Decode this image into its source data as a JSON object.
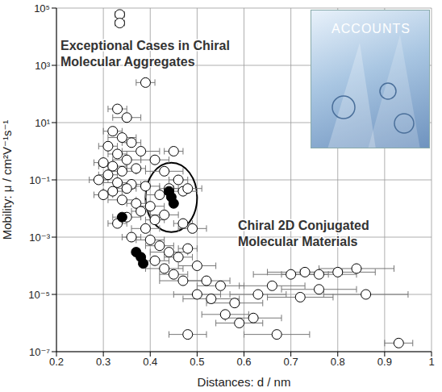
{
  "chart_data": {
    "type": "scatter",
    "xlabel": "Distances: d / nm",
    "ylabel": "Mobility: μ / cm²V⁻¹s⁻¹",
    "log": "y",
    "grid": true,
    "xlim": [
      0.2,
      1
    ],
    "xticks": [
      0.2,
      0.3,
      0.4,
      0.5,
      0.6,
      0.7,
      0.8,
      0.9,
      1
    ],
    "ylim": [
      1e-07,
      100000
    ],
    "yticks": [
      {
        "value": 1e-07,
        "label": "10⁻⁷"
      },
      {
        "value": 1e-05,
        "label": "10⁻⁵"
      },
      {
        "value": 0.001,
        "label": "10⁻³"
      },
      {
        "value": 0.1,
        "label": "10⁻¹"
      },
      {
        "value": 10,
        "label": "10¹"
      },
      {
        "value": 1000,
        "label": "10³"
      },
      {
        "value": 100000,
        "label": "10⁵"
      }
    ],
    "annotations": [
      {
        "text": "Exceptional Cases in Chiral Molecular Aggregates"
      },
      {
        "text": "Chiral 2D Conjugated Molecular Materials"
      }
    ],
    "inset": {
      "text": "ACCOUNTS"
    },
    "series": [
      {
        "color": "#ffffff",
        "marker": "o",
        "x": [
          0.335,
          0.335,
          0.39,
          0.33,
          0.35,
          0.32,
          0.34,
          0.36,
          0.31,
          0.38,
          0.33,
          0.35,
          0.3,
          0.32,
          0.37,
          0.34,
          0.31,
          0.29,
          0.33,
          0.36,
          0.39,
          0.35,
          0.32,
          0.3,
          0.34,
          0.37,
          0.4,
          0.42,
          0.44,
          0.47,
          0.46,
          0.43,
          0.41,
          0.45,
          0.38,
          0.35,
          0.33,
          0.39,
          0.41,
          0.43,
          0.47,
          0.49,
          0.36,
          0.4,
          0.42,
          0.44,
          0.46,
          0.48,
          0.5,
          0.41,
          0.43,
          0.45,
          0.47,
          0.52,
          0.55,
          0.5,
          0.53,
          0.58,
          0.56,
          0.59,
          0.62,
          0.67,
          0.48,
          0.63,
          0.66,
          0.7,
          0.73,
          0.76,
          0.8,
          0.84,
          0.86,
          0.76,
          0.72,
          0.93,
          0.48
        ],
        "values": [
          60000,
          30000,
          250,
          30,
          15,
          5,
          3,
          2,
          1.5,
          1,
          0.8,
          0.5,
          0.4,
          0.3,
          0.25,
          0.2,
          0.15,
          0.1,
          0.08,
          0.07,
          0.06,
          0.05,
          0.04,
          0.03,
          0.02,
          0.015,
          0.012,
          0.03,
          0.05,
          0.04,
          0.1,
          0.2,
          0.5,
          1,
          0.008,
          0.005,
          0.003,
          0.002,
          0.004,
          0.006,
          0.003,
          0.002,
          0.001,
          0.0008,
          0.0005,
          0.0003,
          0.0002,
          0.0004,
          0.0001,
          0.00015,
          8e-05,
          5e-05,
          3e-05,
          3e-05,
          2e-05,
          1e-05,
          7e-06,
          5e-06,
          2e-06,
          1e-06,
          1.5e-06,
          4e-07,
          4e-07,
          1e-05,
          2e-05,
          5e-05,
          6e-05,
          5e-05,
          6e-05,
          8e-05,
          1e-05,
          1.5e-05,
          8e-06,
          2e-07,
          0.05
        ],
        "x_error": [
          0.01,
          0.01,
          0.02,
          0.02,
          0.03,
          0.02,
          0.03,
          0.02,
          0.02,
          0.04,
          0.02,
          0.03,
          0.02,
          0.03,
          0.02,
          0.03,
          0.02,
          0.02,
          0.03,
          0.02,
          0.03,
          0.02,
          0.02,
          0.02,
          0.03,
          0.02,
          0.03,
          0.03,
          0.02,
          0.03,
          0.02,
          0.04,
          0.03,
          0.02,
          0.02,
          0.03,
          0.02,
          0.03,
          0.02,
          0.03,
          0.02,
          0.03,
          0.02,
          0.03,
          0.03,
          0.04,
          0.03,
          0.02,
          0.04,
          0.03,
          0.04,
          0.03,
          0.05,
          0.05,
          0.05,
          0.05,
          0.06,
          0.06,
          0.05,
          0.05,
          0.06,
          0.07,
          0.04,
          0.06,
          0.07,
          0.08,
          0.08,
          0.08,
          0.08,
          0.08,
          0.09,
          0.08,
          0.07,
          0.03,
          0.03
        ]
      },
      {
        "color": "#000000",
        "marker": "o",
        "x": [
          0.34,
          0.37,
          0.38,
          0.385
        ],
        "values": [
          0.005,
          0.0003,
          0.0002,
          0.00012
        ],
        "x_error": [
          0.005,
          0.005,
          0.005,
          0.005
        ]
      },
      {
        "color": "#000000",
        "marker": "o",
        "x": [
          0.44,
          0.445,
          0.45
        ],
        "values": [
          0.04,
          0.025,
          0.015
        ],
        "x_error": [
          0.005,
          0.005,
          0.005
        ]
      }
    ]
  }
}
